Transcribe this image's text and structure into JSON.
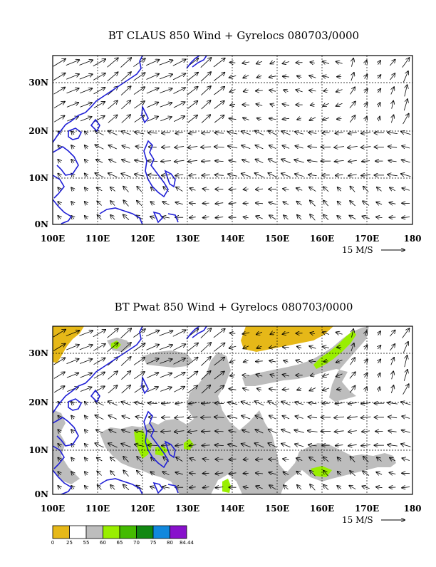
{
  "colors": {
    "coast": "#1f1fd6",
    "grid": "#000000",
    "arrow": "#000000",
    "pwat_shade": "#bdbdbd",
    "pwat_green": "#99ee00",
    "pwat_gold": "#e6b818"
  },
  "panels": [
    {
      "title": "BT CLAUS 850 Wind + Gyrelocs 080703/0000",
      "x_ticks": [
        "100E",
        "110E",
        "120E",
        "130E",
        "140E",
        "150E",
        "160E",
        "170E",
        "180"
      ],
      "y_ticks": [
        "0N",
        "10N",
        "20N",
        "30N"
      ],
      "scale_label": "15 M/S"
    },
    {
      "title": "BT Pwat 850 Wind + Gyrelocs 080703/0000",
      "x_ticks": [
        "100E",
        "110E",
        "120E",
        "130E",
        "140E",
        "150E",
        "160E",
        "170E",
        "180"
      ],
      "y_ticks": [
        "0N",
        "10N",
        "20N",
        "30N"
      ],
      "scale_label": "15 M/S"
    }
  ],
  "colorbar": {
    "labels": [
      "0",
      "25",
      "55",
      "60",
      "65",
      "70",
      "75",
      "80",
      "84.44"
    ],
    "colors": [
      "#e6b818",
      "#ffffff",
      "#bdbdbd",
      "#99ee00",
      "#44bb00",
      "#118811",
      "#1188dd",
      "#8811cc"
    ]
  }
}
